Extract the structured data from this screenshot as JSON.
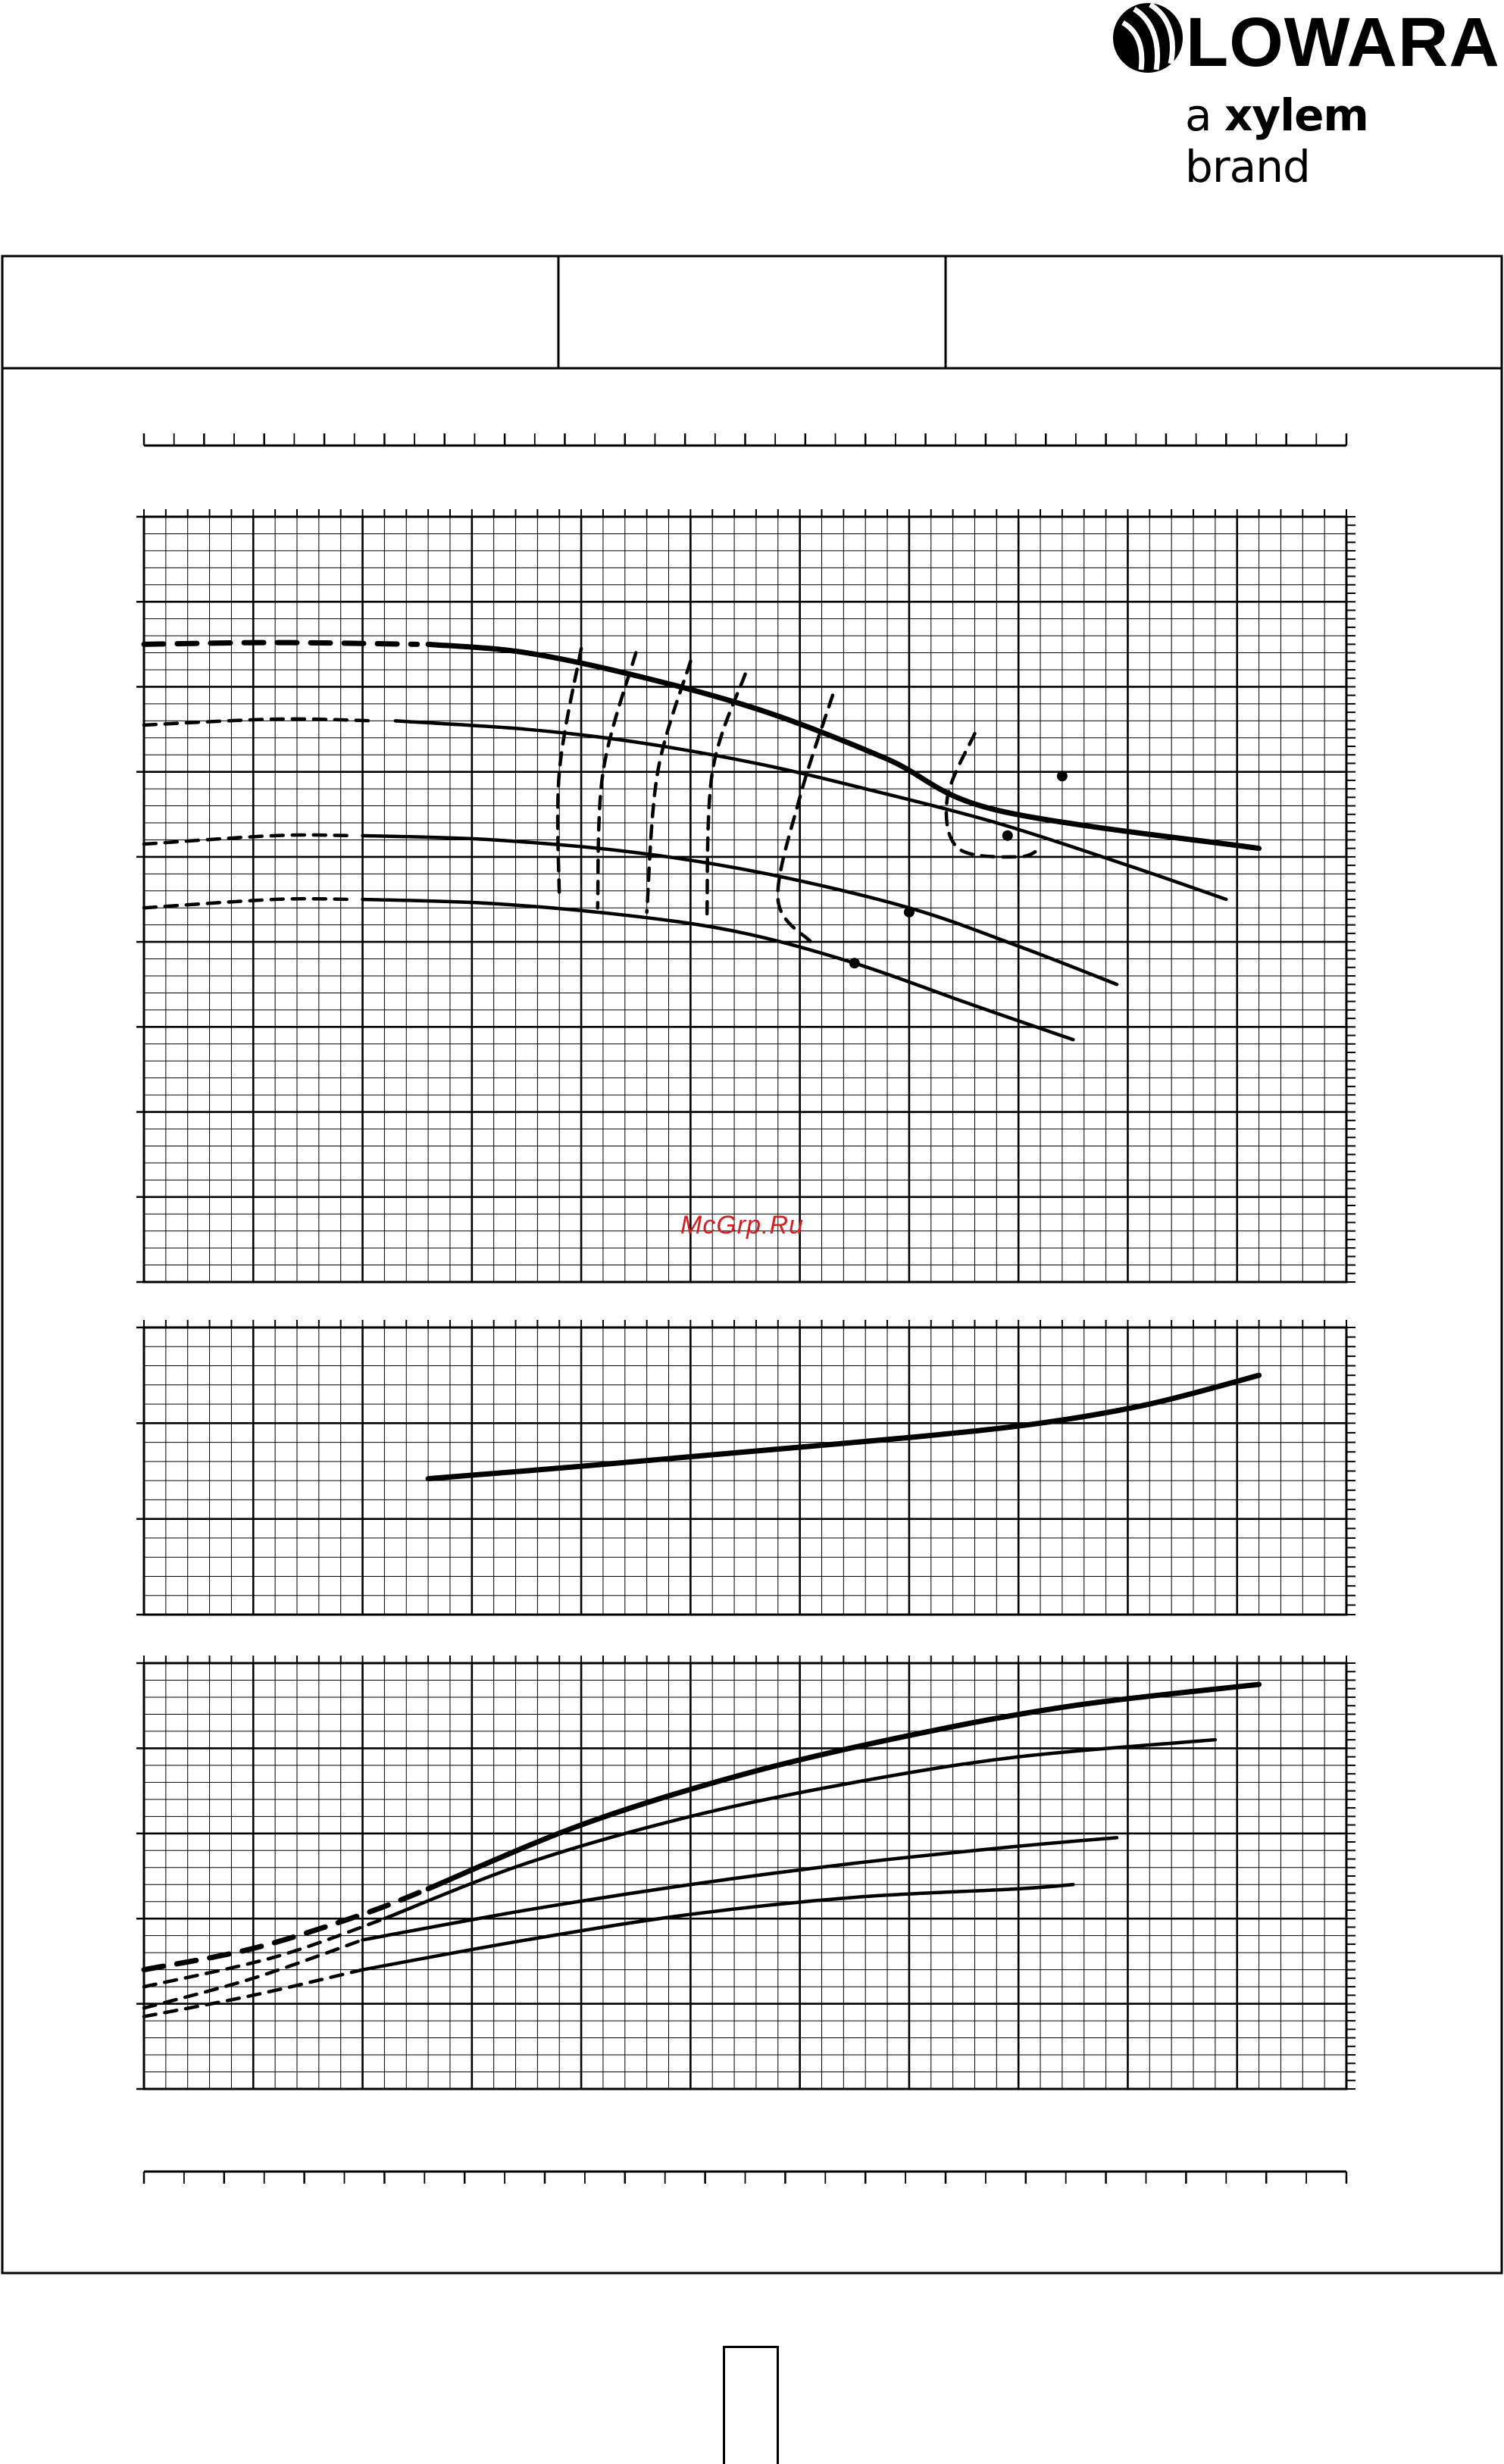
{
  "brand": {
    "name": "LOWARA",
    "tagline_prefix": "a",
    "tagline_brand": "xylem",
    "tagline_suffix": "brand",
    "logo_icon": "lowara-swirl-icon"
  },
  "watermark": "McGrp.Ru",
  "header": {
    "cells": [
      "",
      "",
      ""
    ]
  },
  "page_number": "",
  "colors": {
    "ink": "#000000",
    "watermark": "#d42020",
    "background": "#ffffff"
  },
  "chart_data": [
    {
      "type": "line",
      "panel": "head",
      "title": "",
      "xlabel": "",
      "ylabel": "",
      "xlim": [
        0,
        11
      ],
      "ylim": [
        0,
        9
      ],
      "grid": true,
      "series": [
        {
          "style": "solid-bold",
          "x": [
            2.6,
            3.5,
            4.6,
            5.7,
            6.8,
            7.8,
            10.2
          ],
          "y": [
            7.5,
            7.4,
            7.1,
            6.7,
            6.15,
            5.55,
            5.1
          ]
        },
        {
          "style": "dashed-bold",
          "x": [
            0,
            1.2,
            2.5
          ],
          "y": [
            7.5,
            7.52,
            7.5
          ]
        },
        {
          "style": "solid",
          "x": [
            2.3,
            3.5,
            4.5,
            5.6,
            6.6,
            7.8,
            9.0,
            9.9
          ],
          "y": [
            6.6,
            6.5,
            6.35,
            6.1,
            5.8,
            5.4,
            4.9,
            4.5
          ]
        },
        {
          "style": "dashed",
          "x": [
            0,
            1.2,
            2.1
          ],
          "y": [
            6.55,
            6.62,
            6.6
          ]
        },
        {
          "style": "solid",
          "x": [
            2.0,
            3.2,
            4.5,
            5.7,
            7.0,
            8.0,
            8.9
          ],
          "y": [
            5.25,
            5.2,
            5.05,
            4.8,
            4.4,
            3.95,
            3.5
          ]
        },
        {
          "style": "dashed",
          "x": [
            0,
            1.2,
            1.9
          ],
          "y": [
            5.15,
            5.25,
            5.25
          ]
        },
        {
          "style": "solid",
          "x": [
            2.0,
            3.2,
            4.5,
            5.5,
            6.5,
            7.6,
            8.5
          ],
          "y": [
            4.5,
            4.45,
            4.3,
            4.1,
            3.75,
            3.25,
            2.85
          ]
        },
        {
          "style": "dashed",
          "x": [
            0,
            1.2,
            1.9
          ],
          "y": [
            4.4,
            4.5,
            4.5
          ]
        }
      ],
      "markers": [
        {
          "x": 8.4,
          "y": 5.95
        },
        {
          "x": 7.9,
          "y": 5.25
        },
        {
          "x": 7.0,
          "y": 4.35
        },
        {
          "x": 6.5,
          "y": 3.75
        }
      ],
      "curves_dashed_vertical": [
        {
          "x": [
            4.0,
            3.8,
            3.8
          ],
          "y": [
            7.45,
            6.0,
            4.5
          ]
        },
        {
          "x": [
            4.5,
            4.2,
            4.15
          ],
          "y": [
            7.4,
            6.0,
            4.4
          ]
        },
        {
          "x": [
            5.0,
            4.7,
            4.6
          ],
          "y": [
            7.3,
            6.0,
            4.35
          ]
        },
        {
          "x": [
            5.5,
            5.2,
            5.15
          ],
          "y": [
            7.15,
            6.0,
            4.3
          ]
        },
        {
          "x": [
            6.3,
            6.0,
            5.8,
            6.1
          ],
          "y": [
            6.9,
            5.7,
            4.5,
            4.0
          ]
        },
        {
          "x": [
            7.6,
            7.35,
            7.45,
            8.0,
            8.2
          ],
          "y": [
            6.45,
            5.7,
            5.1,
            5.0,
            5.1
          ]
        }
      ]
    },
    {
      "type": "line",
      "panel": "npsh",
      "title": "",
      "xlabel": "",
      "ylabel": "",
      "xlim": [
        0,
        11
      ],
      "ylim": [
        0,
        3
      ],
      "grid": true,
      "series": [
        {
          "style": "solid-bold",
          "x": [
            2.6,
            4.0,
            5.5,
            7.0,
            8.2,
            9.2,
            10.2
          ],
          "y": [
            1.42,
            1.55,
            1.7,
            1.85,
            2.0,
            2.2,
            2.5
          ]
        }
      ]
    },
    {
      "type": "line",
      "panel": "power",
      "title": "",
      "xlabel": "",
      "ylabel": "",
      "xlim": [
        0,
        11
      ],
      "ylim": [
        0,
        5
      ],
      "grid": true,
      "series": [
        {
          "style": "solid-bold",
          "x": [
            2.6,
            4.0,
            5.5,
            7.0,
            8.5,
            10.2
          ],
          "y": [
            2.35,
            3.1,
            3.7,
            4.15,
            4.5,
            4.75
          ]
        },
        {
          "style": "dashed-bold",
          "x": [
            0,
            1.0,
            2.0,
            2.6
          ],
          "y": [
            1.4,
            1.65,
            2.05,
            2.35
          ]
        },
        {
          "style": "solid",
          "x": [
            2.2,
            3.5,
            5.0,
            6.5,
            8.0,
            9.8
          ],
          "y": [
            2.0,
            2.65,
            3.2,
            3.6,
            3.9,
            4.1
          ]
        },
        {
          "style": "dashed",
          "x": [
            0,
            1.2,
            2.2
          ],
          "y": [
            1.2,
            1.55,
            2.0
          ]
        },
        {
          "style": "solid",
          "x": [
            2.0,
            3.5,
            5.0,
            6.5,
            8.0,
            8.9
          ],
          "y": [
            1.75,
            2.1,
            2.4,
            2.65,
            2.85,
            2.95
          ]
        },
        {
          "style": "dashed",
          "x": [
            0,
            1.0,
            2.0
          ],
          "y": [
            0.95,
            1.3,
            1.75
          ]
        },
        {
          "style": "solid",
          "x": [
            2.0,
            3.5,
            5.0,
            6.5,
            8.0,
            8.5
          ],
          "y": [
            1.4,
            1.75,
            2.05,
            2.25,
            2.35,
            2.4
          ]
        },
        {
          "style": "dashed",
          "x": [
            0,
            1.0,
            2.0
          ],
          "y": [
            0.85,
            1.1,
            1.4
          ]
        }
      ]
    }
  ]
}
